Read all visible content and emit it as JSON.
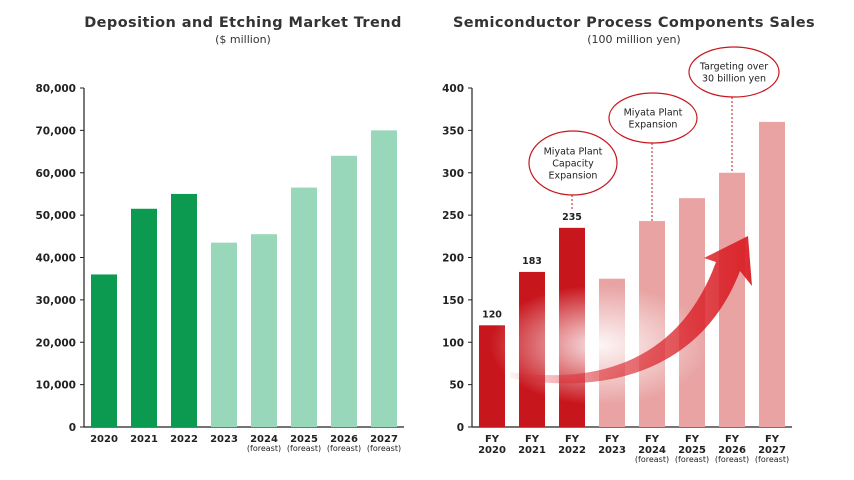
{
  "colors": {
    "green_actual": "#0b9a4f",
    "green_forecast": "#98d7b9",
    "red_actual": "#c8161d",
    "red_forecast": "#e9a3a3",
    "callout_border": "#c8161d",
    "axis": "#222222"
  },
  "chart_data": [
    {
      "type": "bar",
      "title": "Deposition and Etching Market Trend",
      "subtitle": "($ million)",
      "xlabel": "",
      "ylabel": "",
      "ylim": [
        0,
        80000
      ],
      "yticks": [
        "0",
        "10,000",
        "20,000",
        "30,000",
        "40,000",
        "50,000",
        "60,000",
        "70,000",
        "80,000"
      ],
      "categories": [
        {
          "label": "2020",
          "note": ""
        },
        {
          "label": "2021",
          "note": ""
        },
        {
          "label": "2022",
          "note": ""
        },
        {
          "label": "2023",
          "note": ""
        },
        {
          "label": "2024",
          "note": "(foreast)"
        },
        {
          "label": "2025",
          "note": "(foreast)"
        },
        {
          "label": "2026",
          "note": "(foreast)"
        },
        {
          "label": "2027",
          "note": "(foreast)"
        }
      ],
      "values": [
        36000,
        51500,
        55000,
        43500,
        45500,
        56500,
        64000,
        70000
      ],
      "forecast_flags": [
        false,
        false,
        false,
        true,
        true,
        true,
        true,
        true
      ]
    },
    {
      "type": "bar",
      "title": "Semiconductor Process Components Sales",
      "subtitle": "(100 million yen)",
      "xlabel": "",
      "ylabel": "",
      "ylim": [
        0,
        400
      ],
      "yticks": [
        "0",
        "50",
        "100",
        "150",
        "200",
        "250",
        "300",
        "350",
        "400"
      ],
      "categories": [
        {
          "prefix": "FY",
          "label": "2020",
          "note": ""
        },
        {
          "prefix": "FY",
          "label": "2021",
          "note": ""
        },
        {
          "prefix": "FY",
          "label": "2022",
          "note": ""
        },
        {
          "prefix": "FY",
          "label": "2023",
          "note": ""
        },
        {
          "prefix": "FY",
          "label": "2024",
          "note": "(foreast)"
        },
        {
          "prefix": "FY",
          "label": "2025",
          "note": "(foreast)"
        },
        {
          "prefix": "FY",
          "label": "2026",
          "note": "(foreast)"
        },
        {
          "prefix": "FY",
          "label": "2027",
          "note": "(foreast)"
        }
      ],
      "values": [
        120,
        183,
        235,
        175,
        243,
        270,
        300,
        360
      ],
      "data_labels": [
        "120",
        "183",
        "235",
        "",
        "",
        "",
        "",
        ""
      ],
      "forecast_flags": [
        false,
        false,
        false,
        true,
        true,
        true,
        true,
        true
      ],
      "annotations": [
        {
          "lines": [
            "Miyata Plant",
            "Capacity",
            "Expansion"
          ],
          "target_index": 2
        },
        {
          "lines": [
            "Miyata Plant",
            "Expansion"
          ],
          "target_index": 4
        },
        {
          "lines": [
            "Targeting over",
            "30 billion yen"
          ],
          "target_index": 6
        }
      ],
      "trend_arrow": true
    }
  ]
}
